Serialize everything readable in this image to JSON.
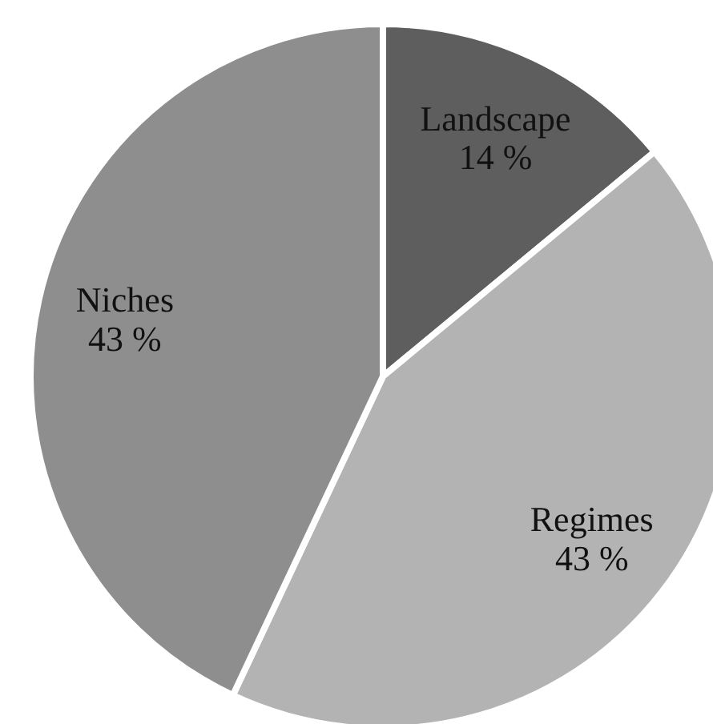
{
  "chart_data": {
    "type": "pie",
    "categories": [
      "Landscape",
      "Regimes",
      "Niches"
    ],
    "values": [
      14,
      43,
      43
    ],
    "value_labels": [
      "14 %",
      "43 %",
      "43 %"
    ],
    "colors": [
      "#5e5e5e",
      "#b3b3b3",
      "#8e8e8e"
    ],
    "legend": false
  }
}
